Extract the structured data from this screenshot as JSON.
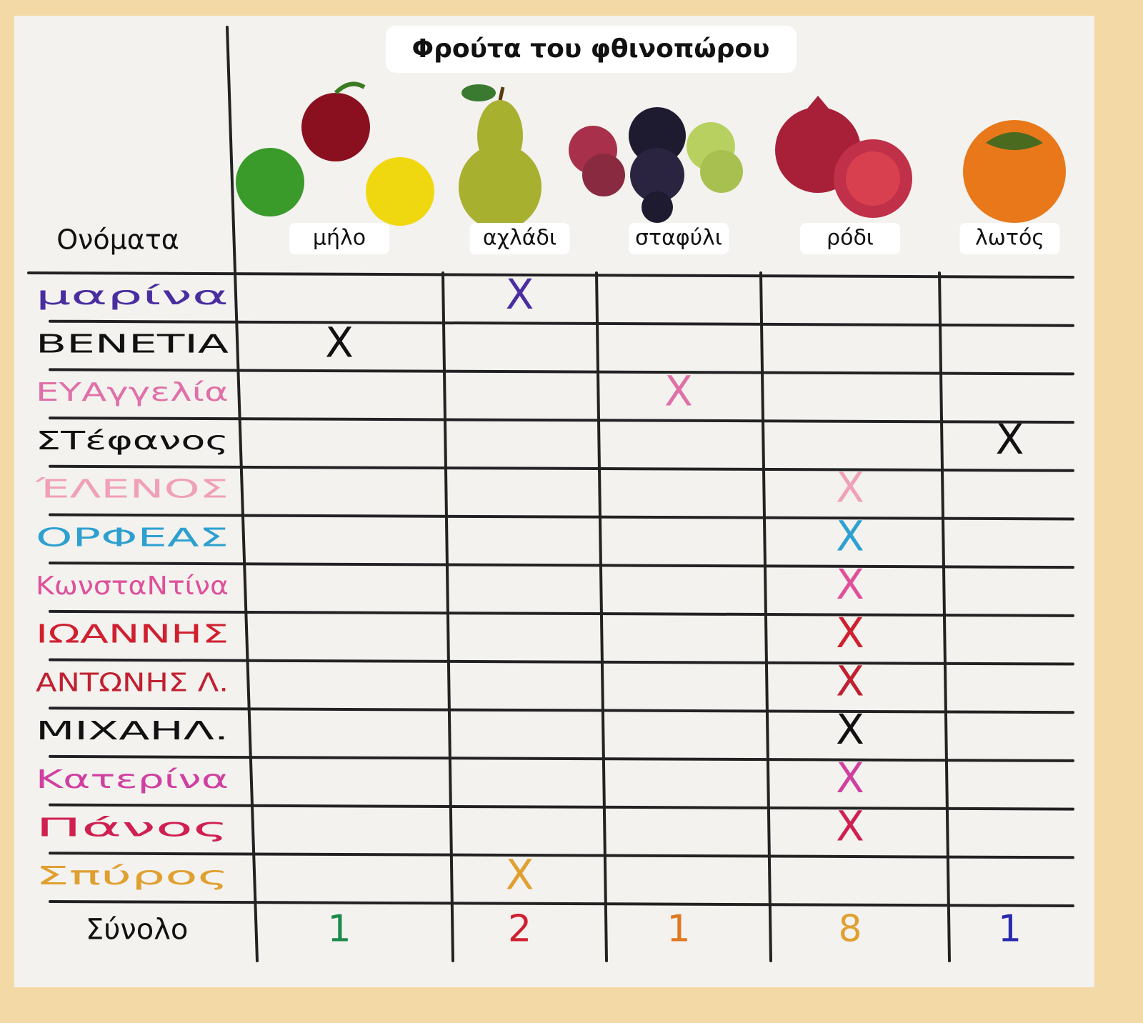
{
  "title": "Φρούτα του φθινοπώρου",
  "header": {
    "names_label": "Ονόματα",
    "fruits": [
      "μήλο",
      "αχλάδι",
      "σταφύλι",
      "ρόδι",
      "λωτός"
    ]
  },
  "rows": [
    {
      "name": "μαρίνα",
      "color": "#4a2ea0",
      "cells": [
        null,
        "X",
        null,
        null,
        null
      ]
    },
    {
      "name": "ΒΕΝΕΤΙΑ",
      "color": "#111111",
      "cells": [
        "X",
        null,
        null,
        null,
        null
      ]
    },
    {
      "name": "ΕΥΑγγελία",
      "color": "#e070a8",
      "cells": [
        null,
        null,
        "X",
        null,
        null
      ]
    },
    {
      "name": "ΣΤέφανος",
      "color": "#111111",
      "cells": [
        null,
        null,
        null,
        null,
        "X"
      ]
    },
    {
      "name": "ΈΛΕΝΟΣ",
      "color": "#f0a0b8",
      "cells": [
        null,
        null,
        null,
        "X",
        null
      ]
    },
    {
      "name": "ΟΡΦΕΑΣ",
      "color": "#2ea0d0",
      "cells": [
        null,
        null,
        null,
        "X",
        null
      ]
    },
    {
      "name": "ΚωνσταΝτίνα",
      "color": "#e0509a",
      "cells": [
        null,
        null,
        null,
        "X",
        null
      ]
    },
    {
      "name": "ΙΩΑΝΝΗΣ",
      "color": "#d02030",
      "cells": [
        null,
        null,
        null,
        "X",
        null
      ]
    },
    {
      "name": "ΑΝΤΩΝΗΣ Λ.",
      "color": "#c02030",
      "cells": [
        null,
        null,
        null,
        "X",
        null
      ]
    },
    {
      "name": "ΜΙΧΑΗΛ.",
      "color": "#111111",
      "cells": [
        null,
        null,
        null,
        "X",
        null
      ]
    },
    {
      "name": "Κατερίνα",
      "color": "#d040a0",
      "cells": [
        null,
        null,
        null,
        "X",
        null
      ]
    },
    {
      "name": "Πάνος",
      "color": "#d02050",
      "cells": [
        null,
        null,
        null,
        "X",
        null
      ]
    },
    {
      "name": "Σπύρος",
      "color": "#e0a030",
      "cells": [
        null,
        "X",
        null,
        null,
        null
      ]
    }
  ],
  "total": {
    "label": "Σύνολο",
    "values": [
      1,
      2,
      1,
      8,
      1
    ],
    "colors": [
      "#1a8a4a",
      "#d02030",
      "#e07820",
      "#e0a030",
      "#2a2ab0"
    ]
  }
}
